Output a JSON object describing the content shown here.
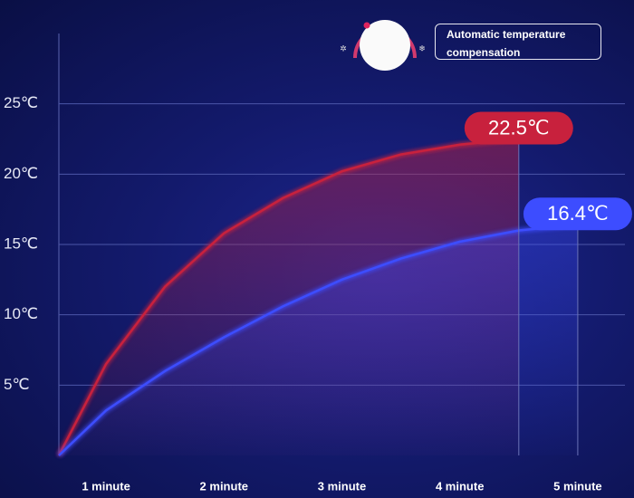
{
  "chart_data": {
    "type": "line",
    "x": [
      0.6,
      1,
      1.5,
      2,
      2.5,
      3,
      3.5,
      4,
      4.5,
      5
    ],
    "series": [
      {
        "color": "#c8213d",
        "values": [
          0,
          6.5,
          12,
          15.8,
          18.3,
          20.2,
          21.4,
          22.1,
          22.5,
          null
        ],
        "value_labels": [
          null,
          null,
          null,
          null,
          null,
          null,
          null,
          null,
          "22.5℃",
          null
        ]
      },
      {
        "color": "#3d4dff",
        "values": [
          0,
          3.2,
          6,
          8.4,
          10.6,
          12.5,
          14,
          15.2,
          16,
          16.4
        ],
        "value_labels": [
          null,
          null,
          null,
          null,
          null,
          null,
          null,
          null,
          null,
          "16.4℃"
        ]
      }
    ],
    "xlim": [
      0.6,
      5.4
    ],
    "xticks": [
      {
        "value": 1,
        "label": "1 minute"
      },
      {
        "value": 2,
        "label": "2 minute"
      },
      {
        "value": 3,
        "label": "3 minute"
      },
      {
        "value": 4,
        "label": "4 minute"
      },
      {
        "value": 5,
        "label": "5 minute"
      }
    ],
    "ylim": [
      0,
      30
    ],
    "yticks": [
      {
        "value": 5,
        "label": "5℃"
      },
      {
        "value": 10,
        "label": "10℃"
      },
      {
        "value": 15,
        "label": "15℃"
      },
      {
        "value": 20,
        "label": "20℃"
      },
      {
        "value": 25,
        "label": "25℃"
      }
    ],
    "grid": true
  },
  "panel": {
    "text": "Automatic temperature compensation"
  }
}
